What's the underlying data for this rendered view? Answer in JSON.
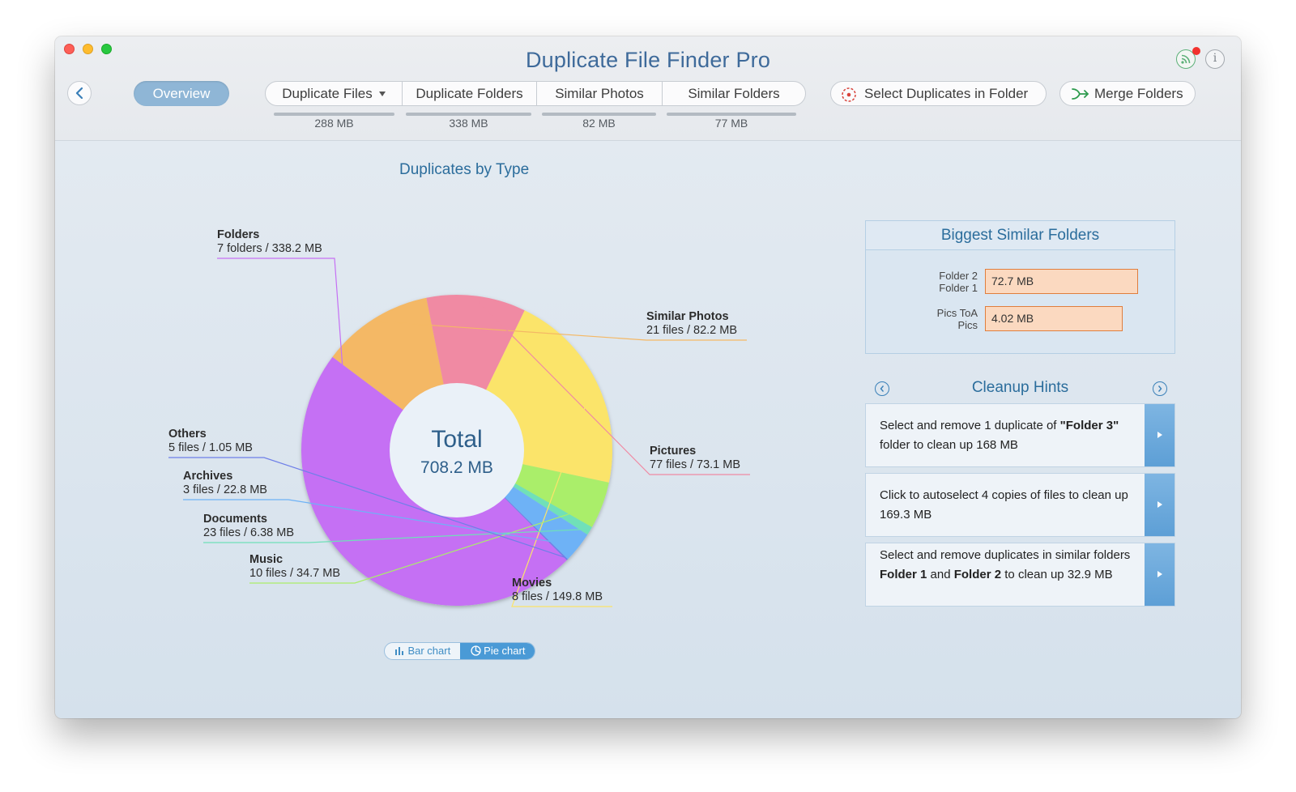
{
  "app": {
    "title": "Duplicate File Finder Pro"
  },
  "toolbar": {
    "overview_label": "Overview",
    "segments": [
      {
        "label": "Duplicate Files",
        "size": "288 MB"
      },
      {
        "label": "Duplicate Folders",
        "size": "338 MB"
      },
      {
        "label": "Similar Photos",
        "size": "82 MB"
      },
      {
        "label": "Similar Folders",
        "size": "77 MB"
      }
    ],
    "select_duplicates_label": "Select Duplicates in Folder",
    "merge_folders_label": "Merge Folders"
  },
  "chart": {
    "title": "Duplicates by Type",
    "center_title": "Total",
    "center_value": "708.2 MB",
    "toggle": {
      "bar_label": "Bar chart",
      "pie_label": "Pie chart",
      "selected": "pie"
    }
  },
  "chart_data": {
    "type": "pie",
    "title": "Duplicates by Type",
    "total": "708.2 MB",
    "unit": "MB",
    "slices": [
      {
        "name": "Folders",
        "detail": "7 folders / 338.2 MB",
        "value": 338.2,
        "color": "#c570f4"
      },
      {
        "name": "Similar Photos",
        "detail": "21 files / 82.2 MB",
        "value": 82.2,
        "color": "#f4b865"
      },
      {
        "name": "Pictures",
        "detail": "77 files / 73.1 MB",
        "value": 73.1,
        "color": "#f08aa3"
      },
      {
        "name": "Movies",
        "detail": "8 files / 149.8 MB",
        "value": 149.8,
        "color": "#fbe46a"
      },
      {
        "name": "Music",
        "detail": "10 files / 34.7 MB",
        "value": 34.7,
        "color": "#aaee6a"
      },
      {
        "name": "Documents",
        "detail": "23 files / 6.38 MB",
        "value": 6.38,
        "color": "#6fe0b8"
      },
      {
        "name": "Archives",
        "detail": "3 files / 22.8 MB",
        "value": 22.8,
        "color": "#6eb2f6"
      },
      {
        "name": "Others",
        "detail": "5 files / 1.05 MB",
        "value": 1.05,
        "color": "#6e7fe8"
      }
    ]
  },
  "similar_folders": {
    "title": "Biggest Similar Folders",
    "items": [
      {
        "line1": "Folder 2",
        "line2": "Folder 1",
        "size": "72.7 MB",
        "value": 72.7
      },
      {
        "line1": "Pics ToA",
        "line2": "Pics",
        "size": "4.02 MB",
        "value": 4.02
      }
    ]
  },
  "cleanup": {
    "title": "Cleanup Hints",
    "hints": [
      {
        "pre": "Select and remove 1 duplicate of ",
        "bold1": "\"Folder 3\"",
        "mid": " folder to clean up 168 MB",
        "bold2": "",
        "post": ""
      },
      {
        "pre": "Click to autoselect 4 copies of files to clean up 169.3 MB",
        "bold1": "",
        "mid": "",
        "bold2": "",
        "post": ""
      },
      {
        "pre": "Select and remove duplicates in similar folders ",
        "bold1": "Folder 1",
        "mid": " and ",
        "bold2": "Folder 2",
        "post": " to clean up 32.9 MB"
      }
    ]
  },
  "colors": {
    "accent": "#2b6d9c",
    "selected_pill": "#8fb6d6",
    "hint_button": "#5d9fd6"
  }
}
